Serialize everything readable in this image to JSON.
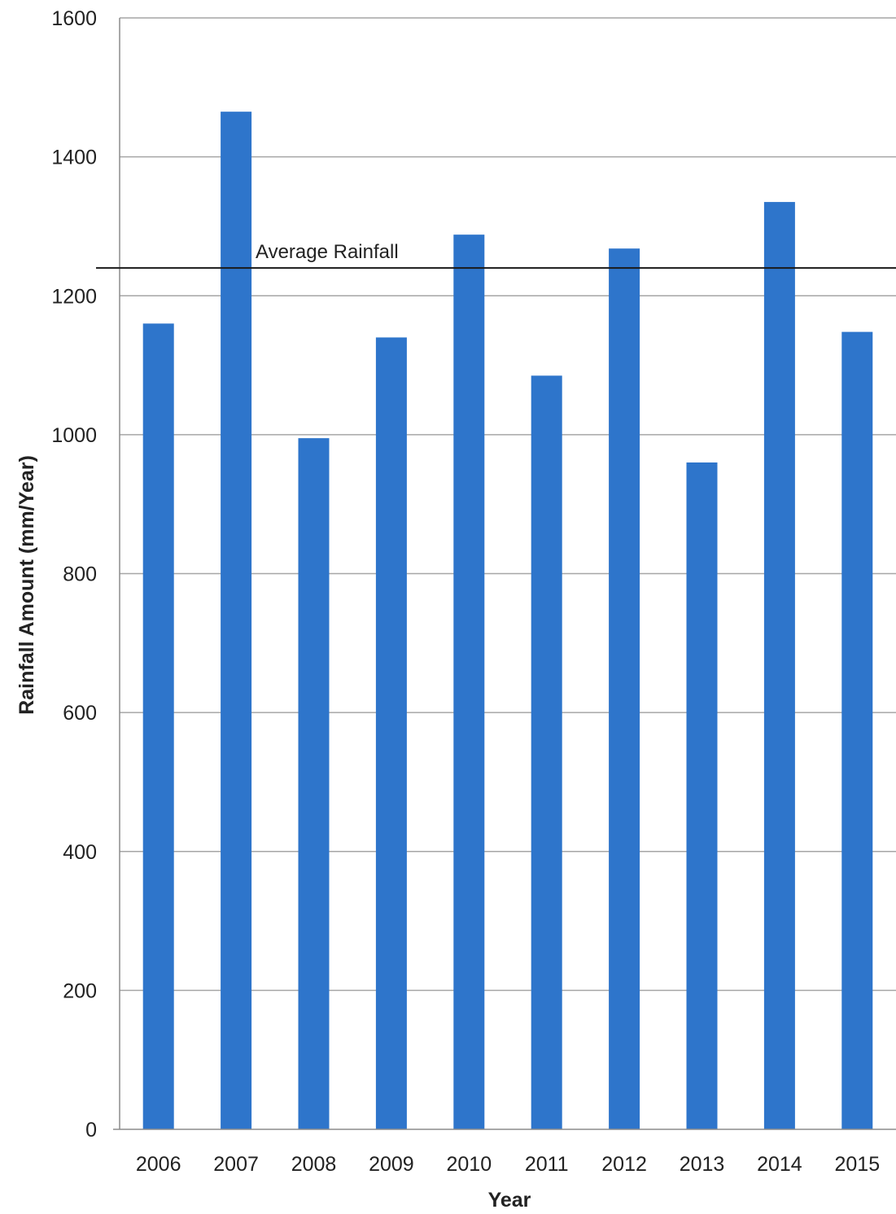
{
  "chart_data": {
    "type": "bar",
    "title": "",
    "xlabel": "Year",
    "ylabel": "Rainfall Amount (mm/Year)",
    "categories": [
      "2006",
      "2007",
      "2008",
      "2009",
      "2010",
      "2011",
      "2012",
      "2013",
      "2014",
      "2015"
    ],
    "series": [
      {
        "values": [
          1160,
          1465,
          995,
          1140,
          1288,
          1085,
          1268,
          960,
          1335,
          1148
        ],
        "color": "#2e75cb"
      }
    ],
    "ylim": [
      0,
      1600
    ],
    "yticks": [
      "0",
      "200",
      "400",
      "600",
      "800",
      "1000",
      "1200",
      "1400",
      "1600"
    ],
    "grid": true,
    "legend": "none",
    "reference_line": {
      "label": "Average Rainfall",
      "value": 1240,
      "color": "#1a1a1a"
    }
  }
}
